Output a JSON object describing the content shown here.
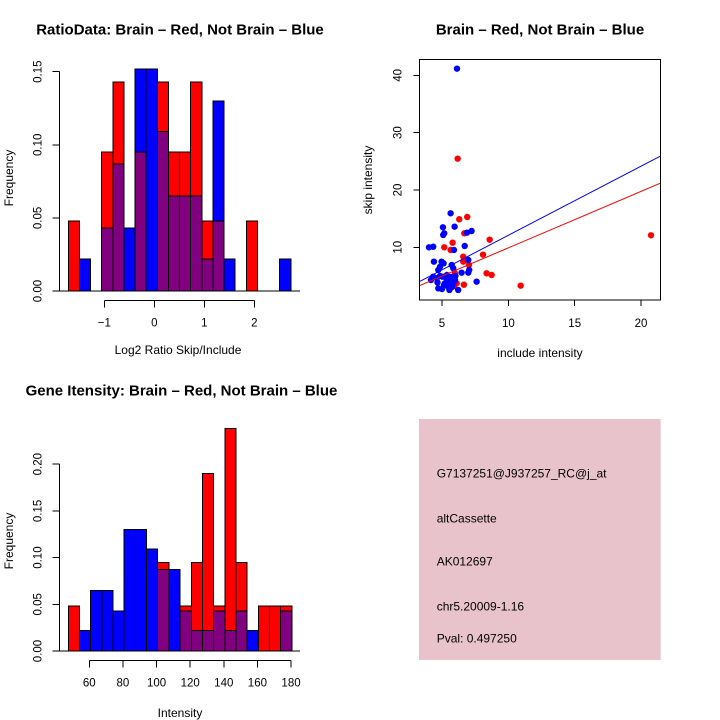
{
  "colors": {
    "brain": "#ff0000",
    "not_brain": "#0000ff",
    "overlap": "#800080",
    "info_background": "#e8c3cb",
    "pval_text": "#a00000"
  },
  "info_panel": {
    "probe_id": "G7137251@J937257_RC@j_at",
    "event_type": "altCassette",
    "accession": "AK012697",
    "location": "chr5.20009-1.16",
    "pval": "Pval: 0.497250"
  },
  "chart_data": [
    {
      "type": "bar",
      "subtype": "overlaid-histogram",
      "title": "RatioData: Brain – Red, Not Brain – Blue",
      "xlabel": "Log2 Ratio Skip/Include",
      "ylabel": "Frequency",
      "bin_start": -1.72,
      "bin_width": 0.2225,
      "xlim": [
        -1.72,
        2.73
      ],
      "ylim": [
        0,
        0.152
      ],
      "xticks": [
        -1,
        0,
        1,
        2
      ],
      "xtick_labels": [
        "−1",
        "0",
        "1",
        "2"
      ],
      "yticks": [
        0,
        0.05,
        0.1,
        0.15
      ],
      "ytick_labels": [
        "0.00",
        "0.05",
        "0.10",
        "0.15"
      ],
      "series": [
        {
          "name": "Brain",
          "color": "red",
          "values": [
            0.048,
            0,
            0,
            0.095,
            0.143,
            0,
            0.095,
            0,
            0.143,
            0.095,
            0.095,
            0.143,
            0.048,
            0.048,
            0,
            0,
            0.048,
            0,
            0,
            0
          ]
        },
        {
          "name": "Not Brain",
          "color": "blue",
          "values": [
            0,
            0.022,
            0,
            0.043,
            0.087,
            0.043,
            0.152,
            0.152,
            0.109,
            0.065,
            0.065,
            0.065,
            0.022,
            0.13,
            0.022,
            0,
            0,
            0,
            0,
            0.022
          ]
        }
      ],
      "overlap": "purple"
    },
    {
      "type": "scatter",
      "title": "Brain – Red, Not Brain – Blue",
      "xlabel": "include intensity",
      "ylabel": "skip intensity",
      "xlim": [
        3.29,
        21.45
      ],
      "ylim": [
        0.8,
        42.8
      ],
      "xticks": [
        5,
        10,
        15,
        20
      ],
      "xtick_labels": [
        "5",
        "10",
        "15",
        "20"
      ],
      "yticks": [
        10,
        20,
        30,
        40
      ],
      "ytick_labels": [
        "10",
        "20",
        "30",
        "40"
      ],
      "series": [
        {
          "name": "Brain",
          "color": "red",
          "points": [
            [
              6.18,
              25.46
            ],
            [
              6.3,
              14.89
            ],
            [
              6.9,
              15.29
            ],
            [
              6.68,
              12.44
            ],
            [
              5.8,
              10.8
            ],
            [
              5.17,
              10.0
            ],
            [
              5.65,
              9.53
            ],
            [
              8.59,
              11.33
            ],
            [
              8.09,
              8.71
            ],
            [
              6.6,
              8.36
            ],
            [
              6.6,
              7.49
            ],
            [
              8.36,
              5.46
            ],
            [
              8.74,
              5.17
            ],
            [
              6.65,
              3.47
            ],
            [
              5.92,
              3.25
            ],
            [
              10.93,
              3.3
            ],
            [
              20.75,
              12.09
            ],
            [
              5.98,
              5.46
            ],
            [
              6.1,
              3.72
            ],
            [
              5.4,
              4.0
            ],
            [
              7.03,
              6.91
            ]
          ],
          "fit": {
            "intercept": 0.05,
            "slope": 0.985
          }
        },
        {
          "name": "Not Brain",
          "color": "blue",
          "points": [
            [
              6.13,
              41.17
            ],
            [
              5.65,
              15.93
            ],
            [
              5.07,
              13.49
            ],
            [
              5.17,
              12.44
            ],
            [
              5.09,
              12.15
            ],
            [
              5.95,
              13.6
            ],
            [
              6.88,
              12.55
            ],
            [
              7.23,
              12.84
            ],
            [
              4.02,
              10.0
            ],
            [
              4.34,
              10.1
            ],
            [
              5.9,
              9.53
            ],
            [
              6.71,
              10.23
            ],
            [
              4.39,
              7.49
            ],
            [
              4.97,
              7.49
            ],
            [
              4.85,
              6.61
            ],
            [
              4.72,
              6.04
            ],
            [
              5.73,
              6.91
            ],
            [
              5.85,
              6.34
            ],
            [
              6.98,
              7.78
            ],
            [
              7.05,
              6.04
            ],
            [
              6.98,
              5.57
            ],
            [
              6.48,
              5.57
            ],
            [
              4.34,
              4.87
            ],
            [
              4.6,
              4.59
            ],
            [
              5.05,
              4.87
            ],
            [
              5.35,
              4.59
            ],
            [
              5.6,
              4.0
            ],
            [
              5.85,
              3.72
            ],
            [
              5.22,
              3.72
            ],
            [
              5.47,
              3.12
            ],
            [
              4.72,
              2.84
            ],
            [
              6.22,
              2.55
            ],
            [
              7.61,
              4.0
            ],
            [
              5.98,
              4.29
            ],
            [
              4.17,
              4.29
            ],
            [
              4.85,
              4.99
            ],
            [
              5.37,
              5.17
            ],
            [
              5.67,
              4.82
            ],
            [
              5.15,
              3.42
            ],
            [
              5.75,
              3.07
            ],
            [
              5.37,
              3.94
            ],
            [
              6.01,
              4.99
            ],
            [
              4.66,
              3.86
            ],
            [
              5.0,
              2.72
            ],
            [
              5.56,
              2.55
            ],
            [
              5.12,
              7.2
            ]
          ],
          "fit": {
            "intercept": 0.03,
            "slope": 1.206
          }
        }
      ]
    },
    {
      "type": "bar",
      "subtype": "overlaid-histogram",
      "title": "Gene Itensity: Brain – Red, Not Brain – Blue",
      "xlabel": "Intensity",
      "ylabel": "Frequency",
      "bin_start": 47.5,
      "bin_width": 6.65,
      "xlim": [
        47.5,
        180.5
      ],
      "ylim": [
        0,
        0.238
      ],
      "xticks": [
        60,
        80,
        100,
        120,
        140,
        160,
        180
      ],
      "xtick_labels": [
        "60",
        "80",
        "100",
        "120",
        "140",
        "160",
        "180"
      ],
      "yticks": [
        0,
        0.05,
        0.1,
        0.15,
        0.2
      ],
      "ytick_labels": [
        "0.00",
        "0.05",
        "0.10",
        "0.15",
        "0.20"
      ],
      "series": [
        {
          "name": "Brain",
          "color": "red",
          "values": [
            0.048,
            0,
            0,
            0,
            0,
            0,
            0,
            0,
            0.095,
            0,
            0.048,
            0.095,
            0.19,
            0.048,
            0.238,
            0.095,
            0,
            0.048,
            0.048,
            0.048
          ]
        },
        {
          "name": "Not Brain",
          "color": "blue",
          "values": [
            0,
            0.022,
            0.065,
            0.065,
            0.043,
            0.13,
            0.13,
            0.109,
            0.087,
            0.087,
            0.043,
            0.022,
            0.022,
            0.043,
            0.022,
            0.043,
            0.022,
            0,
            0,
            0.043
          ]
        }
      ],
      "overlap": "purple"
    }
  ]
}
